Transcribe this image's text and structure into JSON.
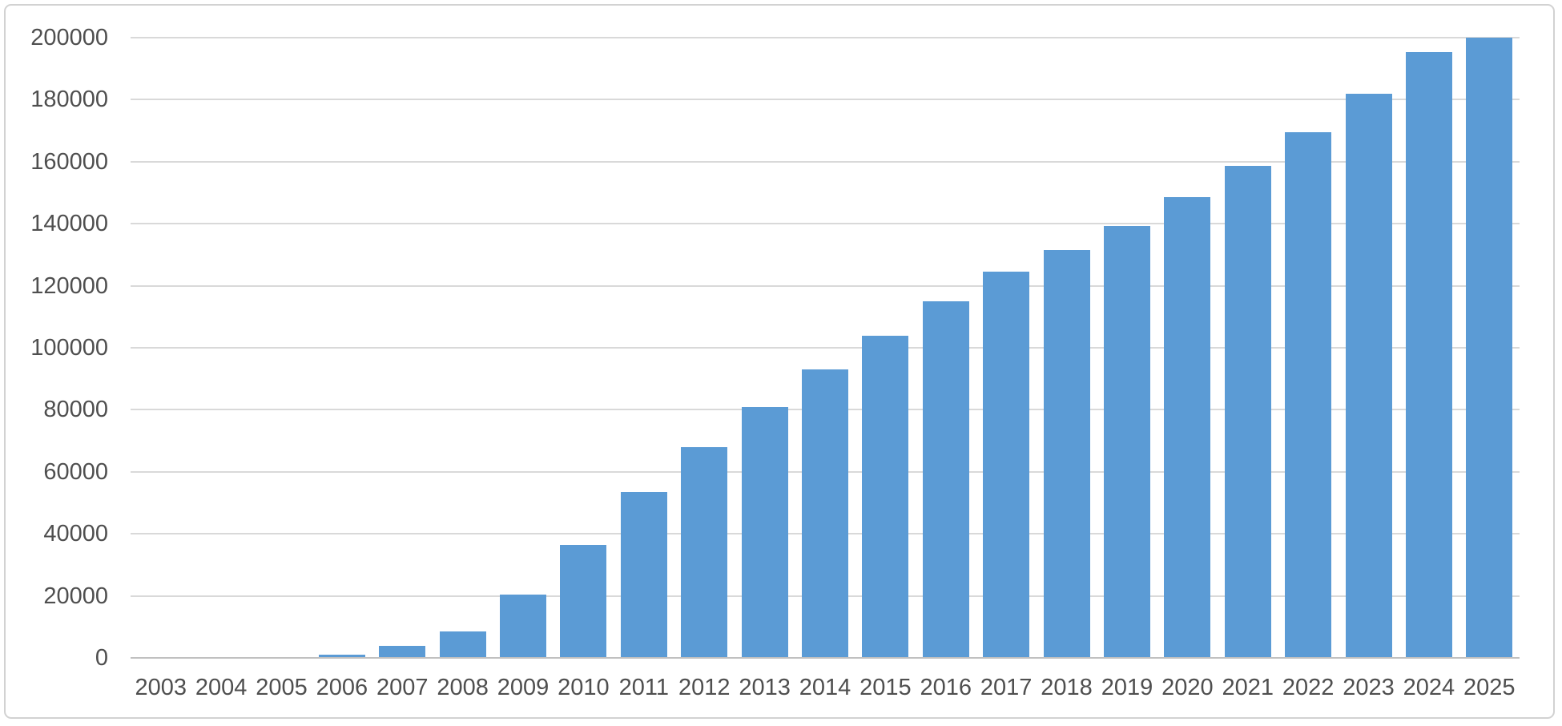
{
  "chart_data": {
    "type": "bar",
    "title": "",
    "xlabel": "",
    "ylabel": "",
    "categories": [
      "2003",
      "2004",
      "2005",
      "2006",
      "2007",
      "2008",
      "2009",
      "2010",
      "2011",
      "2012",
      "2013",
      "2014",
      "2015",
      "2016",
      "2017",
      "2018",
      "2019",
      "2020",
      "2021",
      "2022",
      "2023",
      "2024",
      "2025"
    ],
    "values": [
      0,
      100,
      250,
      1000,
      3900,
      8600,
      20300,
      36400,
      53600,
      68000,
      81000,
      93000,
      104000,
      115000,
      124500,
      131600,
      139300,
      148600,
      158600,
      169400,
      182000,
      195400,
      200000
    ],
    "ylim": [
      0,
      200000
    ],
    "y_tick_step": 20000,
    "y_tick_labels": [
      "0",
      "20000",
      "40000",
      "60000",
      "80000",
      "100000",
      "120000",
      "140000",
      "160000",
      "180000",
      "200000"
    ],
    "grid": true,
    "legend_position": "none",
    "colors": {
      "bar_fill": "#5b9bd5",
      "gridline": "#d9d9d9",
      "axis_line": "#c0c0c0",
      "tick_label_text": "#4f4f4f",
      "frame_border": "#d2d2d2",
      "background": "#ffffff"
    }
  }
}
